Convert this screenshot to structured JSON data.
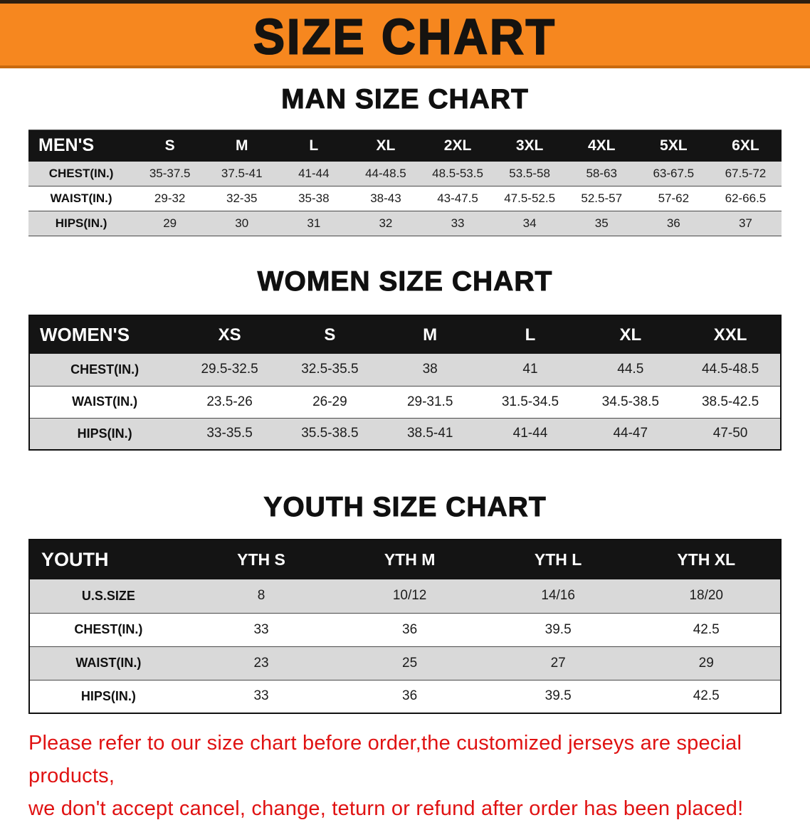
{
  "banner": {
    "title": "SIZE CHART",
    "bg_color": "#f6871f"
  },
  "sections": {
    "men": {
      "heading": "MAN SIZE CHART",
      "table": {
        "header": [
          "MEN'S",
          "S",
          "M",
          "L",
          "XL",
          "2XL",
          "3XL",
          "4XL",
          "5XL",
          "6XL"
        ],
        "rows": [
          [
            "CHEST(IN.)",
            "35-37.5",
            "37.5-41",
            "41-44",
            "44-48.5",
            "48.5-53.5",
            "53.5-58",
            "58-63",
            "63-67.5",
            "67.5-72"
          ],
          [
            "WAIST(IN.)",
            "29-32",
            "32-35",
            "35-38",
            "38-43",
            "43-47.5",
            "47.5-52.5",
            "52.5-57",
            "57-62",
            "62-66.5"
          ],
          [
            "HIPS(IN.)",
            "29",
            "30",
            "31",
            "32",
            "33",
            "34",
            "35",
            "36",
            "37"
          ]
        ]
      }
    },
    "women": {
      "heading": "WOMEN SIZE CHART",
      "table": {
        "header": [
          "WOMEN'S",
          "XS",
          "S",
          "M",
          "L",
          "XL",
          "XXL"
        ],
        "rows": [
          [
            "CHEST(IN.)",
            "29.5-32.5",
            "32.5-35.5",
            "38",
            "41",
            "44.5",
            "44.5-48.5"
          ],
          [
            "WAIST(IN.)",
            "23.5-26",
            "26-29",
            "29-31.5",
            "31.5-34.5",
            "34.5-38.5",
            "38.5-42.5"
          ],
          [
            "HIPS(IN.)",
            "33-35.5",
            "35.5-38.5",
            "38.5-41",
            "41-44",
            "44-47",
            "47-50"
          ]
        ]
      }
    },
    "youth": {
      "heading": "YOUTH SIZE CHART",
      "table": {
        "header": [
          "YOUTH",
          "YTH S",
          "YTH M",
          "YTH L",
          "YTH XL"
        ],
        "rows": [
          [
            "U.S.SIZE",
            "8",
            "10/12",
            "14/16",
            "18/20"
          ],
          [
            "CHEST(IN.)",
            "33",
            "36",
            "39.5",
            "42.5"
          ],
          [
            "WAIST(IN.)",
            "23",
            "25",
            "27",
            "29"
          ],
          [
            "HIPS(IN.)",
            "33",
            "36",
            "39.5",
            "42.5"
          ]
        ]
      }
    }
  },
  "disclaimer": {
    "color": "#e01212",
    "line1": "Please refer to our size chart before order,the customized jerseys are special products,",
    "line2": "we don't accept cancel, change, teturn or refund after order has been placed!"
  }
}
